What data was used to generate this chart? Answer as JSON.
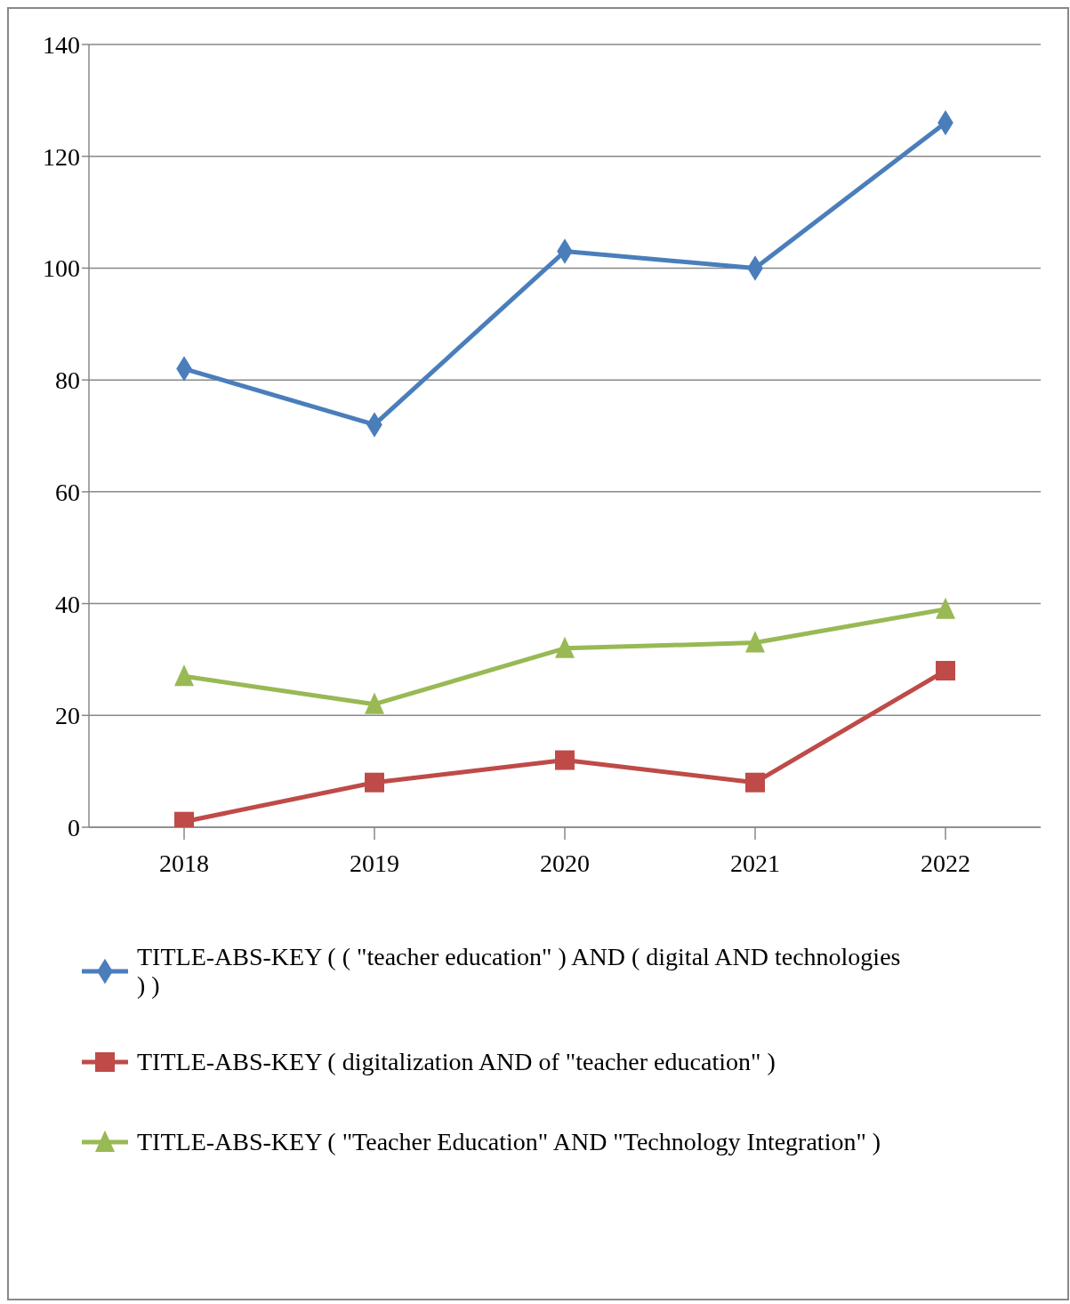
{
  "chart_data": {
    "type": "line",
    "categories": [
      "2018",
      "2019",
      "2020",
      "2021",
      "2022"
    ],
    "series": [
      {
        "name": "TITLE-ABS-KEY ( ( \"teacher education\" )  AND  ( digital  AND  technologies ) )",
        "color": "#4a7ebb",
        "marker": "diamond",
        "values": [
          82,
          72,
          103,
          100,
          126
        ]
      },
      {
        "name": "TITLE-ABS-KEY ( digitalization  AND of  \"teacher education\" )",
        "color": "#be4b48",
        "marker": "square",
        "values": [
          1,
          8,
          12,
          8,
          28
        ]
      },
      {
        "name": "TITLE-ABS-KEY ( \"Teacher Education\"  AND  \"Technology Integration\" )",
        "color": "#98b954",
        "marker": "triangle",
        "values": [
          27,
          22,
          32,
          33,
          39
        ]
      }
    ],
    "ylim": [
      0,
      140
    ],
    "yticks": [
      0,
      20,
      40,
      60,
      80,
      100,
      120,
      140
    ],
    "grid": "y",
    "legend": "bottom",
    "line_style": "solid"
  }
}
